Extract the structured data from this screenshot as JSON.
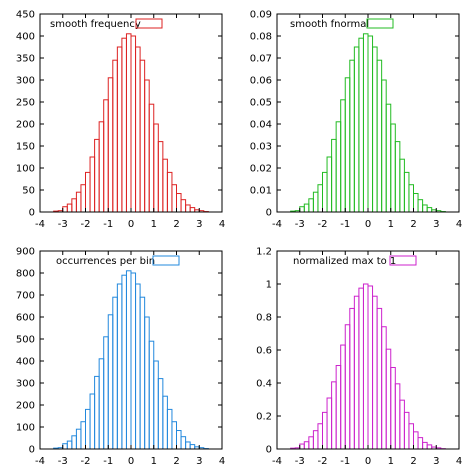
{
  "chart_data": [
    {
      "type": "bar",
      "legend": "smooth frequency",
      "color": "#dd2222",
      "xlim": [
        -4,
        4
      ],
      "ylim": [
        0,
        450
      ],
      "xticks": [
        "-4",
        "-3",
        "-2",
        "-1",
        "0",
        "1",
        "2",
        "3",
        "4"
      ],
      "yticks": [
        "0",
        "50",
        "100",
        "150",
        "200",
        "250",
        "300",
        "350",
        "400",
        "450"
      ],
      "bins": [
        -3.3,
        -3.1,
        -2.9,
        -2.7,
        -2.5,
        -2.3,
        -2.1,
        -1.9,
        -1.7,
        -1.5,
        -1.3,
        -1.1,
        -0.9,
        -0.7,
        -0.5,
        -0.3,
        -0.1,
        0.1,
        0.3,
        0.5,
        0.7,
        0.9,
        1.1,
        1.3,
        1.5,
        1.7,
        1.9,
        2.1,
        2.3,
        2.5,
        2.7,
        2.9,
        3.1,
        3.3
      ],
      "values": [
        2,
        3,
        12,
        18,
        30,
        45,
        62,
        90,
        125,
        165,
        205,
        255,
        305,
        345,
        375,
        395,
        405,
        400,
        375,
        345,
        300,
        245,
        200,
        160,
        120,
        90,
        62,
        42,
        28,
        16,
        10,
        5,
        3,
        1
      ]
    },
    {
      "type": "bar",
      "legend": "smooth fnormal",
      "color": "#22bb22",
      "xlim": [
        -4,
        4
      ],
      "ylim": [
        0,
        0.09
      ],
      "xticks": [
        "-4",
        "-3",
        "-2",
        "-1",
        "0",
        "1",
        "2",
        "3",
        "4"
      ],
      "yticks": [
        "0",
        "0.01",
        "0.02",
        "0.03",
        "0.04",
        "0.05",
        "0.06",
        "0.07",
        "0.08",
        "0.09"
      ],
      "bins": [
        -3.3,
        -3.1,
        -2.9,
        -2.7,
        -2.5,
        -2.3,
        -2.1,
        -1.9,
        -1.7,
        -1.5,
        -1.3,
        -1.1,
        -0.9,
        -0.7,
        -0.5,
        -0.3,
        -0.1,
        0.1,
        0.3,
        0.5,
        0.7,
        0.9,
        1.1,
        1.3,
        1.5,
        1.7,
        1.9,
        2.1,
        2.3,
        2.5,
        2.7,
        2.9,
        3.1,
        3.3
      ],
      "values": [
        0.0004,
        0.0006,
        0.0024,
        0.0036,
        0.006,
        0.009,
        0.0124,
        0.018,
        0.025,
        0.033,
        0.041,
        0.051,
        0.061,
        0.069,
        0.075,
        0.079,
        0.081,
        0.08,
        0.075,
        0.069,
        0.06,
        0.049,
        0.04,
        0.032,
        0.024,
        0.018,
        0.0124,
        0.0084,
        0.0056,
        0.0032,
        0.002,
        0.001,
        0.0006,
        0.0002
      ]
    },
    {
      "type": "bar",
      "legend": "occurrences per bin",
      "color": "#2288dd",
      "xlim": [
        -4,
        4
      ],
      "ylim": [
        0,
        900
      ],
      "xticks": [
        "-4",
        "-3",
        "-2",
        "-1",
        "0",
        "1",
        "2",
        "3",
        "4"
      ],
      "yticks": [
        "0",
        "100",
        "200",
        "300",
        "400",
        "500",
        "600",
        "700",
        "800",
        "900"
      ],
      "bins": [
        -3.3,
        -3.1,
        -2.9,
        -2.7,
        -2.5,
        -2.3,
        -2.1,
        -1.9,
        -1.7,
        -1.5,
        -1.3,
        -1.1,
        -0.9,
        -0.7,
        -0.5,
        -0.3,
        -0.1,
        0.1,
        0.3,
        0.5,
        0.7,
        0.9,
        1.1,
        1.3,
        1.5,
        1.7,
        1.9,
        2.1,
        2.3,
        2.5,
        2.7,
        2.9,
        3.1,
        3.3
      ],
      "values": [
        4,
        6,
        24,
        36,
        60,
        90,
        124,
        180,
        250,
        330,
        410,
        510,
        610,
        690,
        750,
        790,
        810,
        800,
        750,
        690,
        600,
        490,
        400,
        320,
        240,
        180,
        124,
        84,
        56,
        32,
        20,
        10,
        6,
        2
      ]
    },
    {
      "type": "bar",
      "legend": "normalized max to 1",
      "color": "#cc22cc",
      "xlim": [
        -4,
        4
      ],
      "ylim": [
        0,
        1.2
      ],
      "xticks": [
        "-4",
        "-3",
        "-2",
        "-1",
        "0",
        "1",
        "2",
        "3",
        "4"
      ],
      "yticks": [
        "0",
        "0.2",
        "0.4",
        "0.6",
        "0.8",
        "1",
        "1.2"
      ],
      "bins": [
        -3.3,
        -3.1,
        -2.9,
        -2.7,
        -2.5,
        -2.3,
        -2.1,
        -1.9,
        -1.7,
        -1.5,
        -1.3,
        -1.1,
        -0.9,
        -0.7,
        -0.5,
        -0.3,
        -0.1,
        0.1,
        0.3,
        0.5,
        0.7,
        0.9,
        1.1,
        1.3,
        1.5,
        1.7,
        1.9,
        2.1,
        2.3,
        2.5,
        2.7,
        2.9,
        3.1,
        3.3
      ],
      "values": [
        0.005,
        0.007,
        0.03,
        0.044,
        0.074,
        0.111,
        0.153,
        0.222,
        0.309,
        0.407,
        0.506,
        0.63,
        0.753,
        0.852,
        0.926,
        0.975,
        1.0,
        0.988,
        0.926,
        0.852,
        0.741,
        0.605,
        0.494,
        0.395,
        0.296,
        0.222,
        0.153,
        0.104,
        0.069,
        0.04,
        0.025,
        0.012,
        0.007,
        0.002
      ]
    }
  ]
}
